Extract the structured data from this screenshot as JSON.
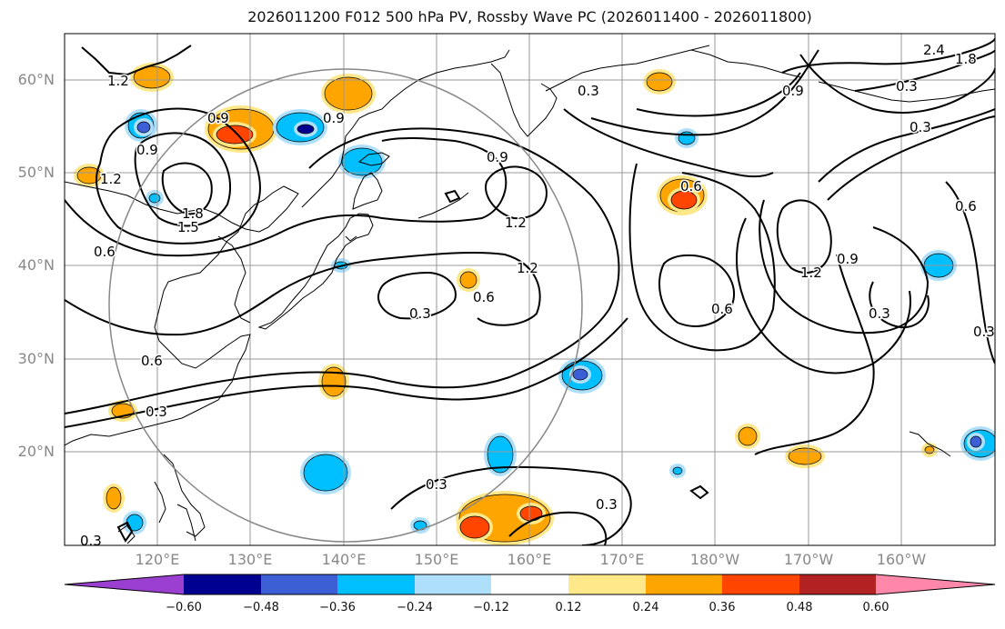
{
  "title": "2026011200 F012 500 hPa PV, Rossby Wave PC (2026011400 - 2026011800)",
  "lat_labels": [
    "60°N",
    "50°N",
    "40°N",
    "30°N",
    "20°N"
  ],
  "lon_labels": [
    "120°E",
    "130°E",
    "140°E",
    "150°E",
    "160°E",
    "170°E",
    "180°W",
    "170°W",
    "160°W"
  ],
  "colorbar": {
    "colors": [
      "#9a3fd0",
      "#000090",
      "#3c5fd6",
      "#00bfff",
      "#aee0fb",
      "#ffffff",
      "#ffe88a",
      "#ffa500",
      "#ff4500",
      "#b22222",
      "#ff88aa"
    ],
    "tick_labels": [
      "−0.60",
      "−0.48",
      "−0.36",
      "−0.24",
      "−0.12",
      "0.12",
      "0.24",
      "0.36",
      "0.48",
      "0.60"
    ]
  },
  "contour_labels": [
    "1.2",
    "0.9",
    "0.9",
    "1.2",
    "1.8",
    "1.5",
    "0.6",
    "0.9",
    "1.2",
    "1.2",
    "0.3",
    "0.6",
    "0.3",
    "0.6",
    "0.3",
    "0.3",
    "0.3",
    "0.3",
    "0.9",
    "0.6",
    "0.9",
    "1.2",
    "0.9",
    "0.3",
    "0.6",
    "2.4",
    "1.8",
    "0.3",
    "0.3",
    "0.3",
    "0.6"
  ]
}
